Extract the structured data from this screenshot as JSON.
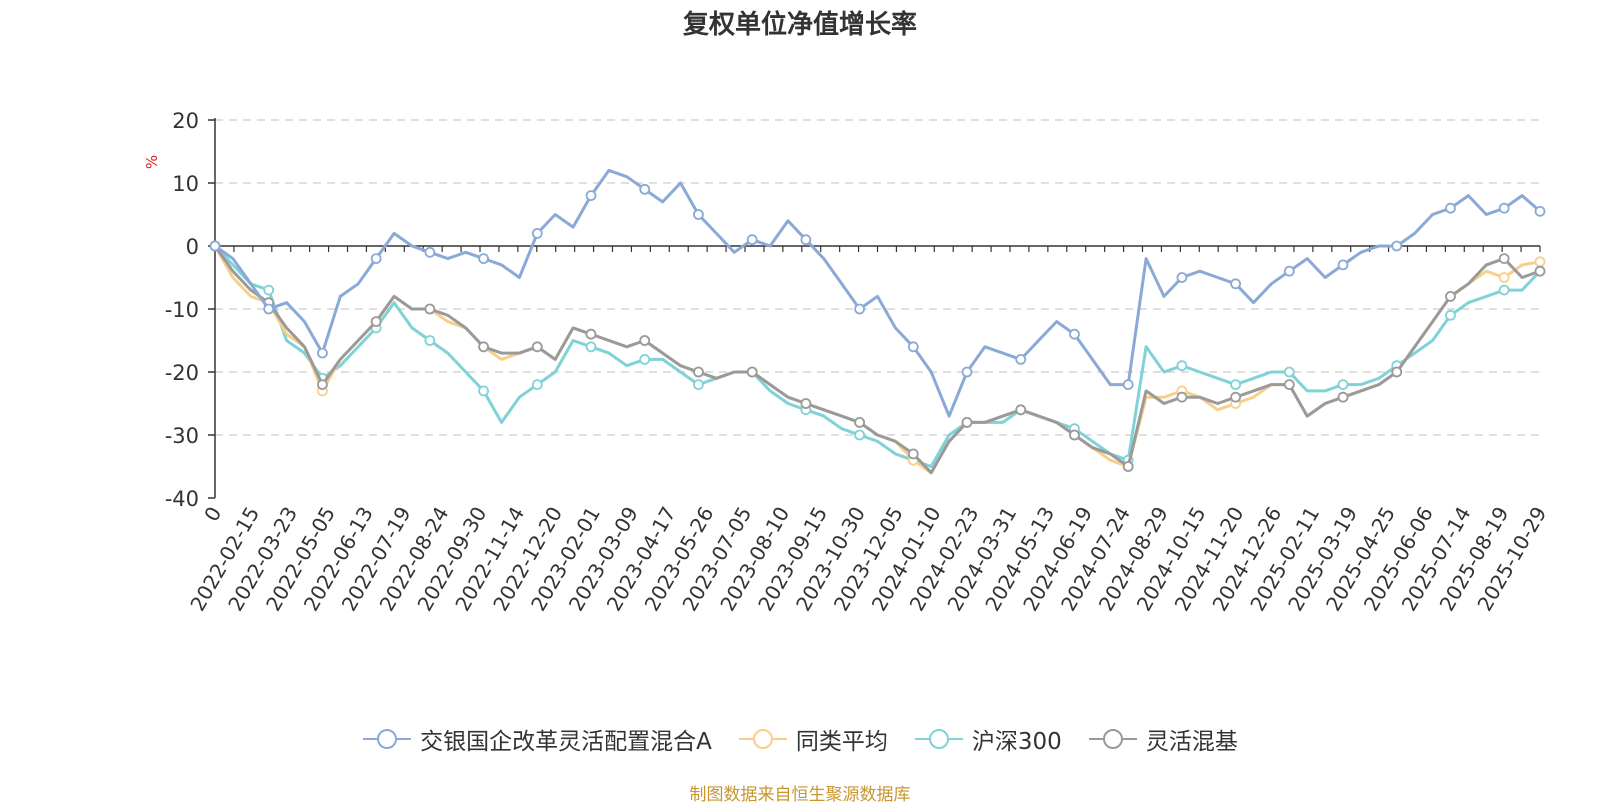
{
  "chart_data": {
    "type": "line",
    "title": "复权单位净值增长率",
    "ylabel": "%",
    "ylim": [
      -40,
      20
    ],
    "yticks": [
      20,
      10,
      0,
      -10,
      -20,
      -30,
      -40
    ],
    "grid": true,
    "legend_position": "bottom-center",
    "x_tick_labels": [
      "0",
      "2022-02-15",
      "2022-03-23",
      "2022-05-05",
      "2022-06-13",
      "2022-07-19",
      "2022-08-24",
      "2022-09-30",
      "2022-11-14",
      "2022-12-20",
      "2023-02-01",
      "2023-03-09",
      "2023-04-17",
      "2023-05-26",
      "2023-07-05",
      "2023-08-10",
      "2023-09-15",
      "2023-10-30",
      "2023-12-05",
      "2024-01-10",
      "2024-02-23",
      "2024-03-31",
      "2024-05-13",
      "2024-06-19",
      "2024-07-24",
      "2024-08-29",
      "2024-10-15",
      "2024-11-20",
      "2024-12-26",
      "2025-02-11",
      "2025-03-19",
      "2025-04-25",
      "2025-06-06",
      "2025-07-14",
      "2025-08-19",
      "2025-10-29"
    ],
    "series": [
      {
        "name": "交银国企改革灵活配置混合A",
        "color": "#8aa9d6",
        "values": [
          0,
          -2,
          -6,
          -10,
          -9,
          -12,
          -17,
          -8,
          -6,
          -2,
          2,
          0,
          -1,
          -2,
          -1,
          -2,
          -3,
          -5,
          2,
          5,
          3,
          8,
          12,
          11,
          9,
          7,
          10,
          5,
          2,
          -1,
          1,
          0,
          4,
          1,
          -2,
          -6,
          -10,
          -8,
          -13,
          -16,
          -20,
          -27,
          -20,
          -16,
          -17,
          -18,
          -15,
          -12,
          -14,
          -18,
          -22,
          -22,
          -2,
          -8,
          -5,
          -4,
          -5,
          -6,
          -9,
          -6,
          -4,
          -2,
          -5,
          -3,
          -1,
          0,
          0,
          2,
          5,
          6,
          8,
          5,
          6,
          8,
          5.5
        ]
      },
      {
        "name": "同类平均",
        "color": "#f8cf8a",
        "values": [
          0,
          -5,
          -8,
          -9,
          -14,
          -16,
          -23,
          -18,
          -15,
          -12,
          -8,
          -10,
          -10,
          -12,
          -13,
          -16,
          -18,
          -17,
          -16,
          -18,
          -13,
          -14,
          -15,
          -16,
          -15,
          -17,
          -19,
          -20,
          -21,
          -20,
          -20,
          -22,
          -24,
          -25,
          -26,
          -27,
          -28,
          -30,
          -31,
          -34,
          -36,
          -31,
          -28,
          -28,
          -27,
          -26,
          -27,
          -28,
          -30,
          -32,
          -34,
          -35,
          -24,
          -24,
          -23,
          -24,
          -26,
          -25,
          -24,
          -22,
          -22,
          -27,
          -25,
          -24,
          -23,
          -22,
          -20,
          -16,
          -12,
          -8,
          -6,
          -4,
          -5,
          -3,
          -2.5
        ]
      },
      {
        "name": "沪深300",
        "color": "#7fd2d6",
        "values": [
          0,
          -3,
          -6,
          -7,
          -15,
          -17,
          -21,
          -19,
          -16,
          -13,
          -9,
          -13,
          -15,
          -17,
          -20,
          -23,
          -28,
          -24,
          -22,
          -20,
          -15,
          -16,
          -17,
          -19,
          -18,
          -18,
          -20,
          -22,
          -21,
          -20,
          -20,
          -23,
          -25,
          -26,
          -27,
          -29,
          -30,
          -31,
          -33,
          -34,
          -35,
          -30,
          -28,
          -28,
          -28,
          -26,
          -27,
          -28,
          -29,
          -31,
          -33,
          -34,
          -16,
          -20,
          -19,
          -20,
          -21,
          -22,
          -21,
          -20,
          -20,
          -23,
          -23,
          -22,
          -22,
          -21,
          -19,
          -17,
          -15,
          -11,
          -9,
          -8,
          -7,
          -7,
          -4
        ]
      },
      {
        "name": "灵活混基",
        "color": "#9a9a9a",
        "values": [
          0,
          -4,
          -7,
          -9,
          -13,
          -16,
          -22,
          -18,
          -15,
          -12,
          -8,
          -10,
          -10,
          -11,
          -13,
          -16,
          -17,
          -17,
          -16,
          -18,
          -13,
          -14,
          -15,
          -16,
          -15,
          -17,
          -19,
          -20,
          -21,
          -20,
          -20,
          -22,
          -24,
          -25,
          -26,
          -27,
          -28,
          -30,
          -31,
          -33,
          -36,
          -31,
          -28,
          -28,
          -27,
          -26,
          -27,
          -28,
          -30,
          -32,
          -33,
          -35,
          -23,
          -25,
          -24,
          -24,
          -25,
          -24,
          -23,
          -22,
          -22,
          -27,
          -25,
          -24,
          -23,
          -22,
          -20,
          -16,
          -12,
          -8,
          -6,
          -3,
          -2,
          -5,
          -4
        ]
      }
    ]
  },
  "source_note": "制图数据来自恒生聚源数据库"
}
